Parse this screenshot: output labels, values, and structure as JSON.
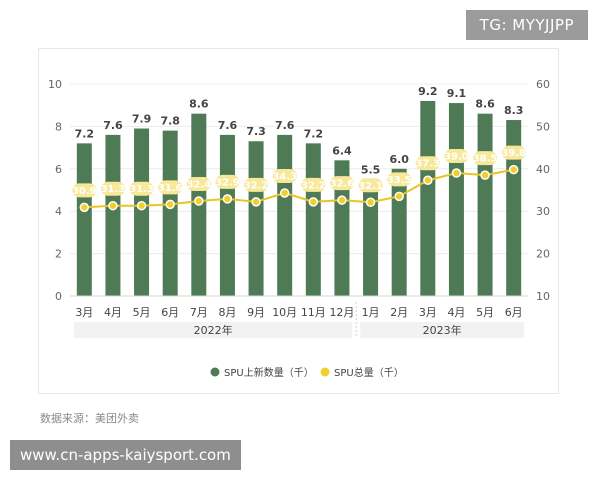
{
  "watermark": "TG: MYYJJPP",
  "source": "数据来源：美团外卖",
  "url_banner": "www.cn-apps-kaiysport.com",
  "colors": {
    "bar": "#4f7a56",
    "line": "#e8c524",
    "point": "#f0cf2e",
    "label_bg": "#f7e89a",
    "group_bg": "#f2f2f2",
    "axis_text": "#666666"
  },
  "chart_data": {
    "type": "bar",
    "title": "",
    "categories": [
      "3月",
      "4月",
      "5月",
      "6月",
      "7月",
      "8月",
      "9月",
      "10月",
      "11月",
      "12月",
      "1月",
      "2月",
      "3月",
      "4月",
      "5月",
      "6月"
    ],
    "groups": [
      {
        "label": "2022年",
        "from": 0,
        "to": 9
      },
      {
        "label": "2023年",
        "from": 10,
        "to": 15
      }
    ],
    "series": [
      {
        "name": "SPU上新数量（千）",
        "type": "bar",
        "axis": "left",
        "values": [
          7.2,
          7.6,
          7.9,
          7.8,
          8.6,
          7.6,
          7.3,
          7.6,
          7.2,
          6.4,
          5.5,
          6.0,
          9.2,
          9.1,
          8.6,
          8.3
        ],
        "labels": [
          "7.2",
          "7.6",
          "7.9",
          "7.8",
          "8.6",
          "7.6",
          "7.3",
          "7.6",
          "7.2",
          "6.4",
          "5.5",
          "6.0",
          "9.2",
          "9.1",
          "8.6",
          "8.3"
        ]
      },
      {
        "name": "SPU总量（千）",
        "type": "line",
        "axis": "right",
        "values": [
          30.9,
          31.3,
          31.3,
          31.6,
          32.4,
          32.9,
          32.2,
          34.3,
          32.2,
          32.6,
          32.1,
          33.5,
          37.3,
          39.0,
          38.5,
          39.8
        ],
        "labels": [
          "30.9",
          "31.3",
          "31.3",
          "31.6",
          "32.4",
          "32.9",
          "32.2",
          "34.3",
          "32.2",
          "32.6",
          "32.1",
          "33.5",
          "37.3",
          "39.0",
          "38.5",
          "39.8"
        ]
      }
    ],
    "left_axis": {
      "min": 0,
      "max": 10,
      "ticks": [
        "0",
        "2",
        "4",
        "6",
        "8",
        "10"
      ],
      "values": [
        0,
        2,
        4,
        6,
        8,
        10
      ]
    },
    "right_axis": {
      "min": 10,
      "max": 60,
      "ticks": [
        "10",
        "20",
        "30",
        "40",
        "50",
        "60"
      ],
      "values": [
        10,
        20,
        30,
        40,
        50,
        60
      ]
    },
    "grid": true,
    "legend_position": "bottom"
  }
}
